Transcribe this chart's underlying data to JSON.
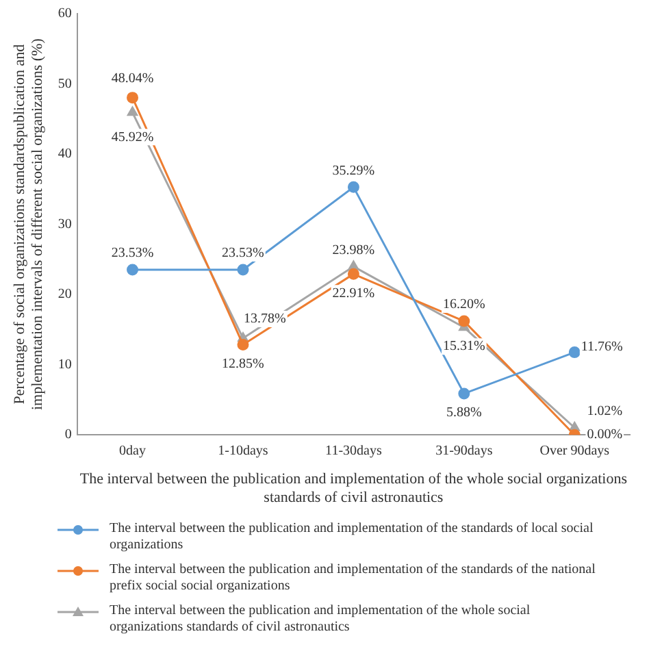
{
  "chart_data": {
    "type": "line",
    "xlabel": "The interval between the publication and implementation of the whole social organizations standards of civil astronautics",
    "ylabel": "Percentage of social organizations standardspublication and implementation intervals of different social organizations (%)",
    "categories": [
      "0day",
      "1-10days",
      "11-30days",
      "31-90days",
      "Over 90days"
    ],
    "ylim": [
      0,
      60
    ],
    "yticks": [
      0,
      10,
      20,
      30,
      40,
      50,
      60
    ],
    "grid": false,
    "legend": "bottom",
    "line_style": "solid",
    "series": [
      {
        "name": "The interval between the publication and implementation of the standards of local social organizations",
        "color": "#5b9bd5",
        "marker": "circle",
        "values": [
          23.53,
          23.53,
          35.29,
          5.88,
          11.76
        ],
        "value_labels": [
          "23.53%",
          "23.53%",
          "35.29%",
          "5.88%",
          "11.76%"
        ]
      },
      {
        "name": "The interval between the publication and implementation of the standards of the national prefix social social organizations",
        "color": "#ed7d31",
        "marker": "circle",
        "values": [
          48.04,
          12.85,
          22.91,
          16.2,
          0.0
        ],
        "value_labels": [
          "48.04%",
          "12.85%",
          "22.91%",
          "16.20%",
          "0.00%"
        ]
      },
      {
        "name": "The interval between the publication and implementation of the whole social organizations standards of civil astronautics",
        "color": "#a5a5a5",
        "marker": "triangle",
        "values": [
          45.92,
          13.78,
          23.98,
          15.31,
          1.02
        ],
        "value_labels": [
          "45.92%",
          "13.78%",
          "23.98%",
          "15.31%",
          "1.02%"
        ]
      }
    ]
  }
}
